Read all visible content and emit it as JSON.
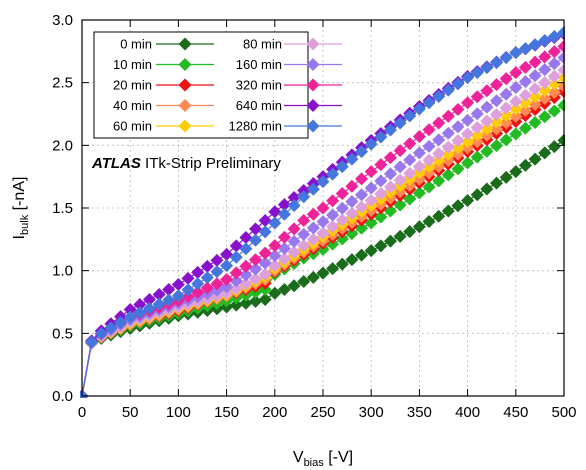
{
  "chart_data": {
    "type": "scatter",
    "xlabel_main": "V",
    "xlabel_sub": "bias",
    "xlabel_unit": " [-V]",
    "ylabel_main": "I",
    "ylabel_sub": "bulk",
    "ylabel_unit": " [-nA]",
    "xlim": [
      0,
      500
    ],
    "ylim": [
      0.0,
      3.0
    ],
    "xticks": [
      0,
      50,
      100,
      150,
      200,
      250,
      300,
      350,
      400,
      450,
      500
    ],
    "yticks": [
      0.0,
      0.5,
      1.0,
      1.5,
      2.0,
      2.5,
      3.0
    ],
    "xtick_labels": [
      "0",
      "50",
      "100",
      "150",
      "200",
      "250",
      "300",
      "350",
      "400",
      "450",
      "500"
    ],
    "ytick_labels": [
      "0.0",
      "0.5",
      "1.0",
      "1.5",
      "2.0",
      "2.5",
      "3.0"
    ],
    "grid": true,
    "legend_placement": "top-left",
    "annotation": {
      "bold": "ATLAS",
      "rest": " ITk-Strip Preliminary"
    },
    "x_step": 10,
    "series": [
      {
        "name": "0 min",
        "color": "#1a6b1a",
        "keypoints": [
          [
            0,
            0.0
          ],
          [
            10,
            0.42
          ],
          [
            20,
            0.46
          ],
          [
            50,
            0.54
          ],
          [
            100,
            0.64
          ],
          [
            150,
            0.71
          ],
          [
            190,
            0.77
          ],
          [
            200,
            0.82
          ],
          [
            220,
            0.88
          ],
          [
            250,
            0.98
          ],
          [
            300,
            1.16
          ],
          [
            350,
            1.35
          ],
          [
            400,
            1.56
          ],
          [
            450,
            1.79
          ],
          [
            500,
            2.04
          ]
        ]
      },
      {
        "name": "10 min",
        "color": "#22bb22",
        "keypoints": [
          [
            0,
            0.0
          ],
          [
            10,
            0.42
          ],
          [
            20,
            0.47
          ],
          [
            50,
            0.56
          ],
          [
            100,
            0.66
          ],
          [
            150,
            0.76
          ],
          [
            190,
            0.85
          ],
          [
            200,
            0.97
          ],
          [
            230,
            1.1
          ],
          [
            250,
            1.17
          ],
          [
            300,
            1.38
          ],
          [
            350,
            1.62
          ],
          [
            400,
            1.86
          ],
          [
            450,
            2.09
          ],
          [
            500,
            2.32
          ]
        ]
      },
      {
        "name": "20 min",
        "color": "#ee1111",
        "keypoints": [
          [
            0,
            0.0
          ],
          [
            10,
            0.42
          ],
          [
            20,
            0.47
          ],
          [
            50,
            0.57
          ],
          [
            100,
            0.68
          ],
          [
            150,
            0.8
          ],
          [
            190,
            0.9
          ],
          [
            200,
            0.99
          ],
          [
            230,
            1.13
          ],
          [
            250,
            1.22
          ],
          [
            300,
            1.45
          ],
          [
            350,
            1.7
          ],
          [
            400,
            1.95
          ],
          [
            450,
            2.19
          ],
          [
            500,
            2.43
          ]
        ]
      },
      {
        "name": "40 min",
        "color": "#ff8855",
        "keypoints": [
          [
            0,
            0.0
          ],
          [
            10,
            0.42
          ],
          [
            20,
            0.47
          ],
          [
            50,
            0.57
          ],
          [
            100,
            0.69
          ],
          [
            150,
            0.8
          ],
          [
            190,
            0.93
          ],
          [
            200,
            1.0
          ],
          [
            230,
            1.15
          ],
          [
            250,
            1.24
          ],
          [
            300,
            1.48
          ],
          [
            350,
            1.73
          ],
          [
            400,
            1.98
          ],
          [
            450,
            2.23
          ],
          [
            500,
            2.47
          ]
        ]
      },
      {
        "name": "60 min",
        "color": "#ffcc00",
        "keypoints": [
          [
            0,
            0.0
          ],
          [
            10,
            0.42
          ],
          [
            20,
            0.48
          ],
          [
            50,
            0.58
          ],
          [
            100,
            0.7
          ],
          [
            150,
            0.81
          ],
          [
            190,
            0.95
          ],
          [
            200,
            1.02
          ],
          [
            230,
            1.17
          ],
          [
            250,
            1.27
          ],
          [
            300,
            1.52
          ],
          [
            350,
            1.78
          ],
          [
            400,
            2.03
          ],
          [
            450,
            2.29
          ],
          [
            500,
            2.54
          ]
        ]
      },
      {
        "name": "80 min",
        "color": "#dda0dd",
        "keypoints": [
          [
            0,
            0.0
          ],
          [
            10,
            0.42
          ],
          [
            20,
            0.48
          ],
          [
            50,
            0.59
          ],
          [
            100,
            0.71
          ],
          [
            150,
            0.82
          ],
          [
            190,
            0.97
          ],
          [
            200,
            1.04
          ],
          [
            230,
            1.2
          ],
          [
            250,
            1.3
          ],
          [
            300,
            1.56
          ],
          [
            350,
            1.83
          ],
          [
            400,
            2.09
          ],
          [
            450,
            2.35
          ],
          [
            500,
            2.6
          ]
        ]
      },
      {
        "name": "160 min",
        "color": "#9977ee",
        "keypoints": [
          [
            0,
            0.0
          ],
          [
            10,
            0.43
          ],
          [
            20,
            0.49
          ],
          [
            50,
            0.61
          ],
          [
            100,
            0.74
          ],
          [
            150,
            0.87
          ],
          [
            190,
            1.06
          ],
          [
            200,
            1.12
          ],
          [
            230,
            1.29
          ],
          [
            250,
            1.39
          ],
          [
            300,
            1.66
          ],
          [
            350,
            1.94
          ],
          [
            400,
            2.2
          ],
          [
            450,
            2.46
          ],
          [
            500,
            2.7
          ]
        ]
      },
      {
        "name": "320 min",
        "color": "#ee2299",
        "keypoints": [
          [
            0,
            0.0
          ],
          [
            10,
            0.43
          ],
          [
            20,
            0.5
          ],
          [
            50,
            0.63
          ],
          [
            100,
            0.76
          ],
          [
            150,
            0.93
          ],
          [
            190,
            1.14
          ],
          [
            200,
            1.2
          ],
          [
            230,
            1.4
          ],
          [
            250,
            1.5
          ],
          [
            300,
            1.79
          ],
          [
            350,
            2.07
          ],
          [
            400,
            2.34
          ],
          [
            450,
            2.58
          ],
          [
            500,
            2.79
          ]
        ]
      },
      {
        "name": "640 min",
        "color": "#8811cc",
        "keypoints": [
          [
            0,
            0.0
          ],
          [
            10,
            0.44
          ],
          [
            20,
            0.52
          ],
          [
            50,
            0.69
          ],
          [
            100,
            0.89
          ],
          [
            150,
            1.13
          ],
          [
            190,
            1.4
          ],
          [
            200,
            1.47
          ],
          [
            230,
            1.64
          ],
          [
            250,
            1.75
          ],
          [
            300,
            2.04
          ],
          [
            350,
            2.31
          ],
          [
            400,
            2.55
          ],
          [
            450,
            2.74
          ],
          [
            500,
            2.89
          ]
        ]
      },
      {
        "name": "1280 min",
        "color": "#4477dd",
        "keypoints": [
          [
            0,
            0.0
          ],
          [
            10,
            0.43
          ],
          [
            20,
            0.5
          ],
          [
            50,
            0.63
          ],
          [
            100,
            0.8
          ],
          [
            150,
            1.04
          ],
          [
            190,
            1.31
          ],
          [
            200,
            1.38
          ],
          [
            230,
            1.59
          ],
          [
            250,
            1.71
          ],
          [
            300,
            2.01
          ],
          [
            350,
            2.29
          ],
          [
            400,
            2.54
          ],
          [
            450,
            2.74
          ],
          [
            500,
            2.9
          ]
        ]
      }
    ]
  }
}
